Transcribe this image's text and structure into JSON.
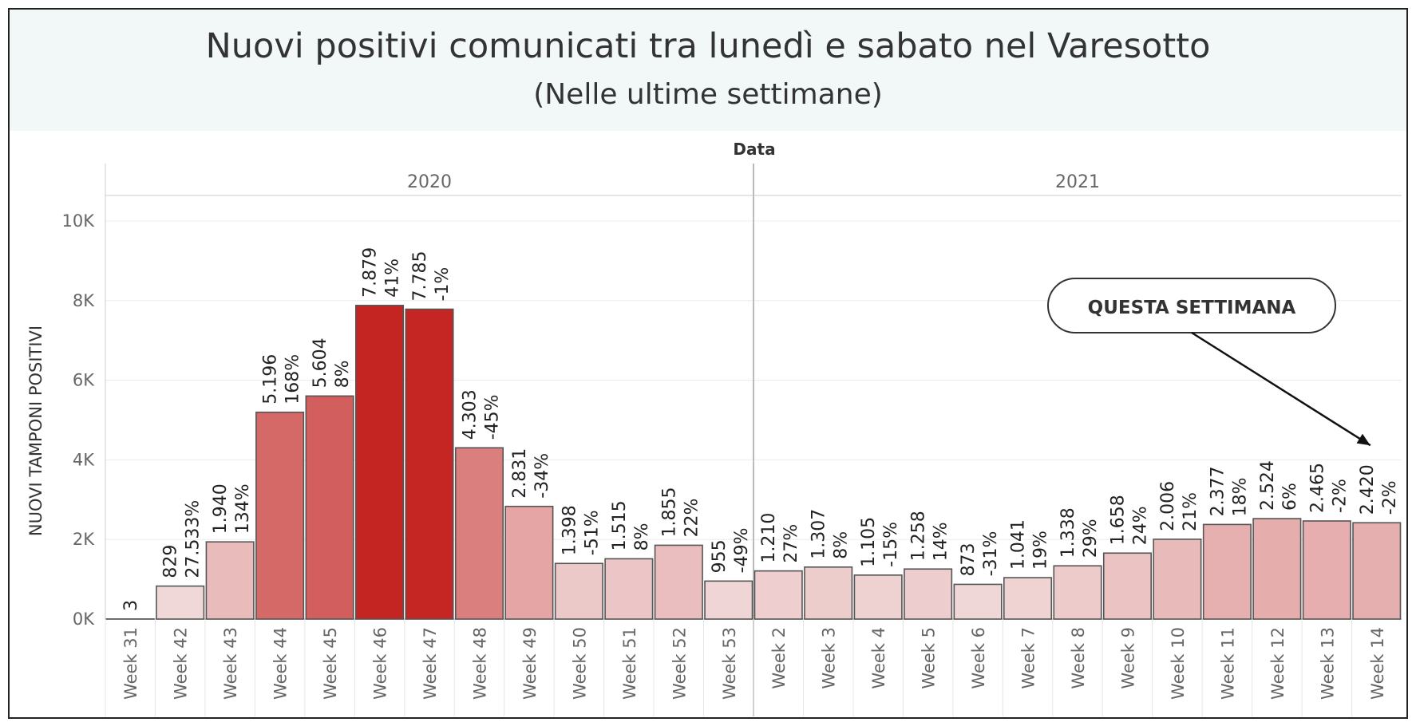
{
  "chart_data": {
    "type": "bar",
    "title": "Nuovi positivi comunicati tra lunedì e sabato nel Varesotto",
    "subtitle": "(Nelle ultime settimane)",
    "column_header": "Data",
    "ylabel": "NUOVI TAMPONI POSITIVI",
    "ylim": [
      0,
      10500
    ],
    "yticks": [
      {
        "value": 0,
        "label": "0K"
      },
      {
        "value": 2000,
        "label": "2K"
      },
      {
        "value": 4000,
        "label": "4K"
      },
      {
        "value": 6000,
        "label": "6K"
      },
      {
        "value": 8000,
        "label": "8K"
      },
      {
        "value": 10000,
        "label": "10K"
      }
    ],
    "grid": true,
    "groups": [
      {
        "label": "2020",
        "categories": [
          "Week 31",
          "Week 42",
          "Week 43",
          "Week 44",
          "Week 45",
          "Week 46",
          "Week 47",
          "Week 48",
          "Week 49",
          "Week 50",
          "Week 51",
          "Week 52",
          "Week 53"
        ]
      },
      {
        "label": "2021",
        "categories": [
          "Week 2",
          "Week 3",
          "Week 4",
          "Week 5",
          "Week 6",
          "Week 7",
          "Week 8",
          "Week 9",
          "Week 10",
          "Week 11",
          "Week 12",
          "Week 13",
          "Week 14"
        ]
      }
    ],
    "categories": [
      "Week 31",
      "Week 42",
      "Week 43",
      "Week 44",
      "Week 45",
      "Week 46",
      "Week 47",
      "Week 48",
      "Week 49",
      "Week 50",
      "Week 51",
      "Week 52",
      "Week 53",
      "Week 2",
      "Week 3",
      "Week 4",
      "Week 5",
      "Week 6",
      "Week 7",
      "Week 8",
      "Week 9",
      "Week 10",
      "Week 11",
      "Week 12",
      "Week 13",
      "Week 14"
    ],
    "values": [
      3,
      829,
      1940,
      5196,
      5604,
      7879,
      7785,
      4303,
      2831,
      1398,
      1515,
      1855,
      955,
      1210,
      1307,
      1105,
      1258,
      873,
      1041,
      1338,
      1658,
      2006,
      2377,
      2524,
      2465,
      2420
    ],
    "value_labels": [
      "3",
      "829",
      "1.940",
      "5.196",
      "5.604",
      "7.879",
      "7.785",
      "4.303",
      "2.831",
      "1.398",
      "1.515",
      "1.855",
      "955",
      "1.210",
      "1.307",
      "1.105",
      "1.258",
      "873",
      "1.041",
      "1.338",
      "1.658",
      "2.006",
      "2.377",
      "2.524",
      "2.465",
      "2.420"
    ],
    "pct_labels": [
      "",
      "27.533%",
      "134%",
      "168%",
      "8%",
      "41%",
      "-1%",
      "-45%",
      "-34%",
      "-51%",
      "8%",
      "22%",
      "-49%",
      "27%",
      "8%",
      "-15%",
      "14%",
      "-31%",
      "19%",
      "29%",
      "24%",
      "21%",
      "18%",
      "6%",
      "-2%",
      "-2%"
    ],
    "color_scale": {
      "low": "#f0d8d8",
      "high": "#c42422"
    },
    "annotation": {
      "text": "QUESTA SETTIMANA",
      "target": "Week 14"
    }
  }
}
